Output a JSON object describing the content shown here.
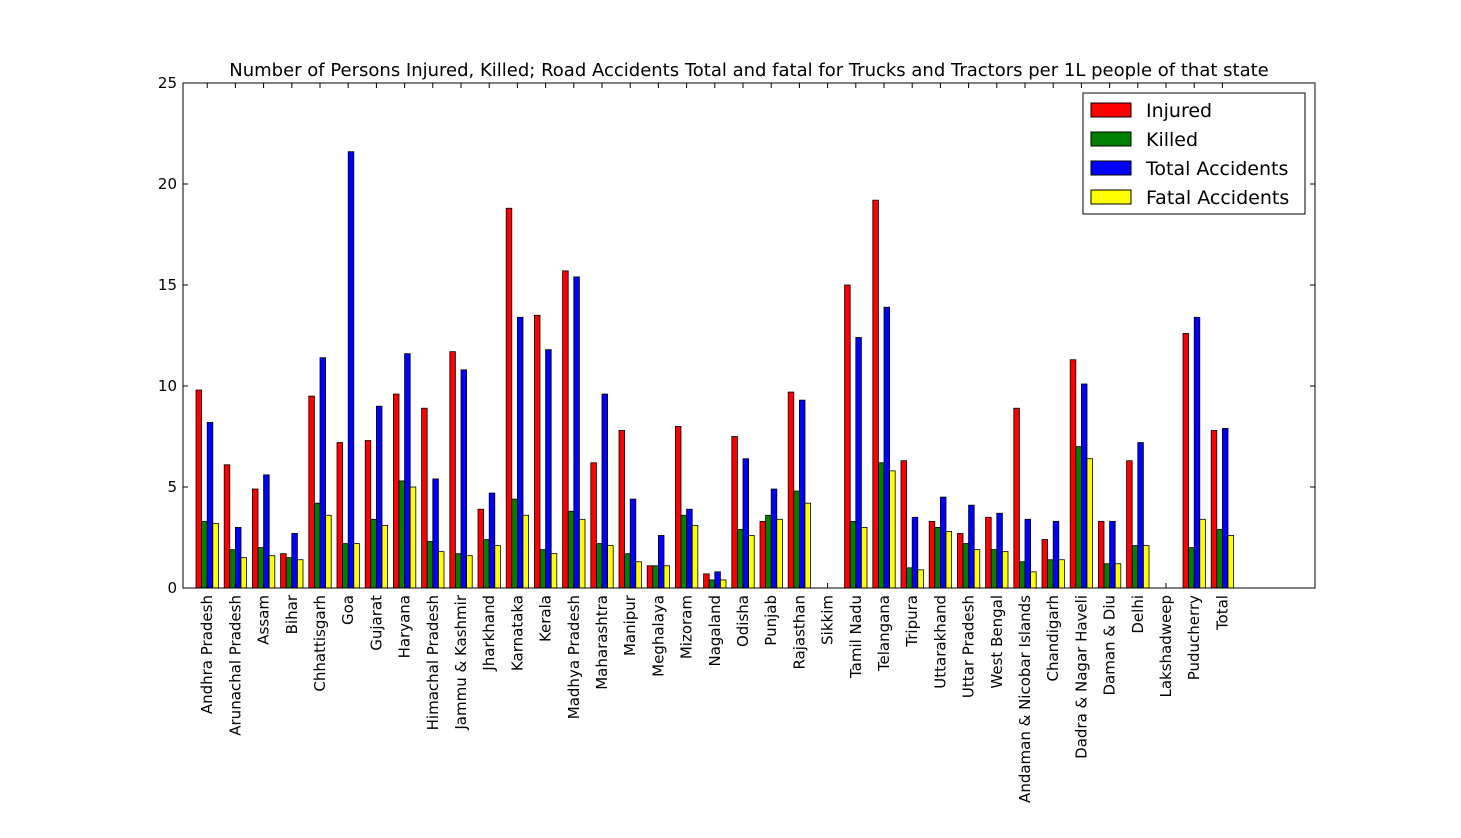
{
  "chart_data": {
    "type": "bar",
    "title": "Number of Persons Injured, Killed; Road Accidents Total and fatal for Trucks and Tractors per 1L people of that state",
    "xlabel": "",
    "ylabel": "",
    "ylim": [
      0,
      25
    ],
    "yticks": [
      "0",
      "5",
      "10",
      "15",
      "20",
      "25"
    ],
    "grid": false,
    "legend_position": "top-right",
    "categories": [
      "Andhra Pradesh",
      "Arunachal Pradesh",
      "Assam",
      "Bihar",
      "Chhattisgarh",
      "Goa",
      "Gujarat",
      "Haryana",
      "Himachal Pradesh",
      "Jammu & Kashmir",
      "Jharkhand",
      "Karnataka",
      "Kerala",
      "Madhya Pradesh",
      "Maharashtra",
      "Manipur",
      "Meghalaya",
      "Mizoram",
      "Nagaland",
      "Odisha",
      "Punjab",
      "Rajasthan",
      "Sikkim",
      "Tamil Nadu",
      "Telangana",
      "Tripura",
      "Uttarakhand",
      "Uttar Pradesh",
      "West Bengal",
      "Andaman & Nicobar Islands",
      "Chandigarh",
      "Dadra & Nagar Haveli",
      "Daman & Diu",
      "Delhi",
      "Lakshadweep",
      "Puducherry",
      "Total"
    ],
    "series": [
      {
        "name": "Injured",
        "color": "#ff0000",
        "values": [
          9.8,
          6.1,
          4.9,
          1.7,
          9.5,
          7.2,
          7.3,
          9.6,
          8.9,
          11.7,
          3.9,
          18.8,
          13.5,
          15.7,
          6.2,
          7.8,
          1.1,
          8.0,
          0.7,
          7.5,
          3.3,
          9.7,
          0,
          15.0,
          19.2,
          6.3,
          3.3,
          2.7,
          3.5,
          8.9,
          2.4,
          11.3,
          3.3,
          6.3,
          0,
          12.6,
          7.8
        ]
      },
      {
        "name": "Killed",
        "color": "#008000",
        "values": [
          3.3,
          1.9,
          2.0,
          1.5,
          4.2,
          2.2,
          3.4,
          5.3,
          2.3,
          1.7,
          2.4,
          4.4,
          1.9,
          3.8,
          2.2,
          1.7,
          1.1,
          3.6,
          0.4,
          2.9,
          3.6,
          4.8,
          0,
          3.3,
          6.2,
          1.0,
          3.0,
          2.2,
          1.9,
          1.3,
          1.4,
          7.0,
          1.2,
          2.1,
          0,
          2.0,
          2.9
        ]
      },
      {
        "name": "Total Accidents",
        "color": "#0000ff",
        "values": [
          8.2,
          3.0,
          5.6,
          2.7,
          11.4,
          21.6,
          9.0,
          11.6,
          5.4,
          10.8,
          4.7,
          13.4,
          11.8,
          15.4,
          9.6,
          4.4,
          2.6,
          3.9,
          0.8,
          6.4,
          4.9,
          9.3,
          0,
          12.4,
          13.9,
          3.5,
          4.5,
          4.1,
          3.7,
          3.4,
          3.3,
          10.1,
          3.3,
          7.2,
          0,
          13.4,
          7.9
        ]
      },
      {
        "name": "Fatal Accidents",
        "color": "#ffff00",
        "values": [
          3.2,
          1.5,
          1.6,
          1.4,
          3.6,
          2.2,
          3.1,
          5.0,
          1.8,
          1.6,
          2.1,
          3.6,
          1.7,
          3.4,
          2.1,
          1.3,
          1.1,
          3.1,
          0.4,
          2.6,
          3.4,
          4.2,
          0,
          3.0,
          5.8,
          0.9,
          2.8,
          1.9,
          1.8,
          0.8,
          1.4,
          6.4,
          1.2,
          2.1,
          0,
          3.4,
          2.6
        ]
      }
    ]
  }
}
